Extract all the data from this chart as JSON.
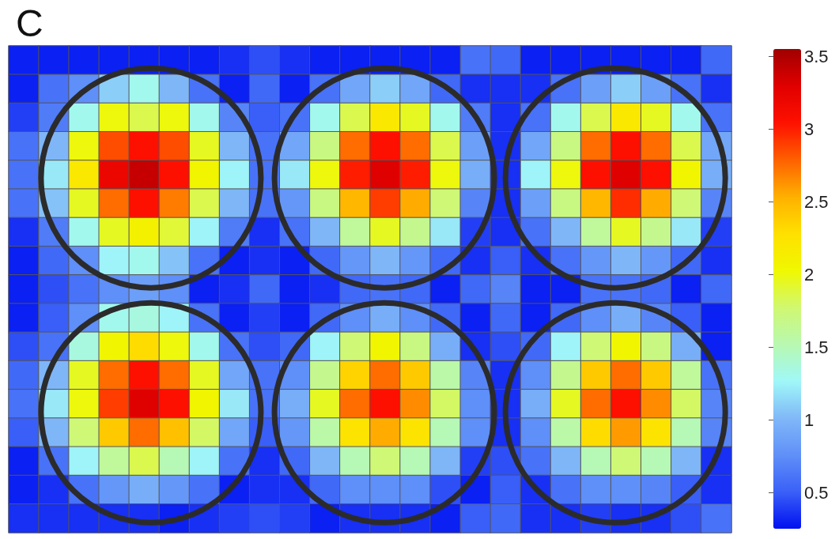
{
  "chart_data": {
    "type": "heatmap",
    "title": "C",
    "categories": [
      null,
      null,
      null,
      null,
      null,
      null,
      null,
      null,
      null,
      null,
      null,
      null,
      null,
      null,
      null,
      null,
      null,
      null,
      null,
      null,
      null,
      null,
      null,
      null
    ],
    "y_categories": [
      null,
      null,
      null,
      null,
      null,
      null,
      null,
      null,
      null,
      null,
      null,
      null,
      null,
      null,
      null,
      null,
      null
    ],
    "cells": [
      [
        0.3,
        0.3,
        0.3,
        0.3,
        0.3,
        0.3,
        0.3,
        0.35,
        0.45,
        0.35,
        0.3,
        0.3,
        0.3,
        0.3,
        0.3,
        0.6,
        0.55,
        0.3,
        0.3,
        0.3,
        0.3,
        0.3,
        0.3,
        0.55
      ],
      [
        0.3,
        0.6,
        0.75,
        1.1,
        1.3,
        1.0,
        0.6,
        0.3,
        0.55,
        0.3,
        0.6,
        0.9,
        1.1,
        0.9,
        0.55,
        0.35,
        0.35,
        0.35,
        0.6,
        0.85,
        1.1,
        0.85,
        0.6,
        0.35
      ],
      [
        0.4,
        0.65,
        1.3,
        2.0,
        1.85,
        2.0,
        1.3,
        0.7,
        0.5,
        0.6,
        1.3,
        1.85,
        2.2,
        1.95,
        1.3,
        0.65,
        0.35,
        0.6,
        1.3,
        1.85,
        2.2,
        1.95,
        1.3,
        0.6
      ],
      [
        0.6,
        1.0,
        2.0,
        2.85,
        3.05,
        2.85,
        1.95,
        1.0,
        0.6,
        0.9,
        1.7,
        2.75,
        3.05,
        2.75,
        1.85,
        0.85,
        0.35,
        0.9,
        1.7,
        2.75,
        3.05,
        2.75,
        1.85,
        0.9
      ],
      [
        0.6,
        1.2,
        2.2,
        3.2,
        3.4,
        3.05,
        2.05,
        1.25,
        0.6,
        1.2,
        2.0,
        3.0,
        3.3,
        3.0,
        2.0,
        0.95,
        0.35,
        1.25,
        2.0,
        3.05,
        3.3,
        3.05,
        2.05,
        0.95
      ],
      [
        0.6,
        1.05,
        1.95,
        2.75,
        3.05,
        2.7,
        1.85,
        1.0,
        0.6,
        0.8,
        1.7,
        2.5,
        2.9,
        2.55,
        1.75,
        0.7,
        0.35,
        0.85,
        1.7,
        2.5,
        2.95,
        2.55,
        1.75,
        0.7
      ],
      [
        0.35,
        0.65,
        1.3,
        1.95,
        2.1,
        1.9,
        1.25,
        0.65,
        0.35,
        0.6,
        1.0,
        1.6,
        1.95,
        1.65,
        1.2,
        0.4,
        0.35,
        0.6,
        1.0,
        1.6,
        1.95,
        1.65,
        1.2,
        0.4
      ],
      [
        0.3,
        0.55,
        0.75,
        1.25,
        1.3,
        1.05,
        0.6,
        0.3,
        0.35,
        0.3,
        0.55,
        0.8,
        1.0,
        0.8,
        0.55,
        0.35,
        0.5,
        0.35,
        0.6,
        0.8,
        1.0,
        0.8,
        0.55,
        0.35
      ],
      [
        0.3,
        0.45,
        0.6,
        0.75,
        0.85,
        0.75,
        0.3,
        0.35,
        0.55,
        0.3,
        0.35,
        0.55,
        0.6,
        0.55,
        0.3,
        0.55,
        0.7,
        0.3,
        0.3,
        0.6,
        0.6,
        0.55,
        0.3,
        0.55
      ],
      [
        0.3,
        0.5,
        0.75,
        1.3,
        1.35,
        1.25,
        0.6,
        0.3,
        0.4,
        0.3,
        0.55,
        0.75,
        0.95,
        0.75,
        0.55,
        0.3,
        0.55,
        0.3,
        0.55,
        0.75,
        0.95,
        0.7,
        0.5,
        0.3
      ],
      [
        0.45,
        0.6,
        1.35,
        2.05,
        2.3,
        2.0,
        1.3,
        0.6,
        0.45,
        0.55,
        1.25,
        1.75,
        2.05,
        1.7,
        0.95,
        0.35,
        0.45,
        0.55,
        1.25,
        1.75,
        2.05,
        1.7,
        0.95,
        0.3
      ],
      [
        0.55,
        1.0,
        1.95,
        2.75,
        3.05,
        2.75,
        1.95,
        0.9,
        0.6,
        0.75,
        1.65,
        2.35,
        2.75,
        2.4,
        1.55,
        0.7,
        0.35,
        0.75,
        1.65,
        2.4,
        2.75,
        2.4,
        1.6,
        0.6
      ],
      [
        0.6,
        1.2,
        2.0,
        2.9,
        3.3,
        3.05,
        2.05,
        1.2,
        0.6,
        0.95,
        1.95,
        2.75,
        3.05,
        2.65,
        1.8,
        0.75,
        0.35,
        0.95,
        1.95,
        2.75,
        3.05,
        2.65,
        1.8,
        0.7
      ],
      [
        0.5,
        1.0,
        1.75,
        2.4,
        2.75,
        2.45,
        1.8,
        0.9,
        0.5,
        0.8,
        1.55,
        2.25,
        2.55,
        2.25,
        1.5,
        0.75,
        0.35,
        0.75,
        1.55,
        2.3,
        2.6,
        2.25,
        1.5,
        0.7
      ],
      [
        0.3,
        0.6,
        1.25,
        1.6,
        1.85,
        1.5,
        1.25,
        0.6,
        0.35,
        0.55,
        1.0,
        1.5,
        1.75,
        1.5,
        1.0,
        0.4,
        0.45,
        0.6,
        1.0,
        1.5,
        1.75,
        1.5,
        1.0,
        0.35
      ],
      [
        0.3,
        0.35,
        0.6,
        0.8,
        0.95,
        0.8,
        0.6,
        0.3,
        0.35,
        0.35,
        0.55,
        0.75,
        0.75,
        0.75,
        0.45,
        0.3,
        0.5,
        0.35,
        0.6,
        0.75,
        0.75,
        0.7,
        0.5,
        0.35
      ],
      [
        0.35,
        0.35,
        0.35,
        0.35,
        0.35,
        0.3,
        0.35,
        0.4,
        0.45,
        0.4,
        0.3,
        0.35,
        0.35,
        0.35,
        0.3,
        0.5,
        0.55,
        0.35,
        0.35,
        0.4,
        0.35,
        0.35,
        0.45,
        0.6
      ]
    ],
    "clim": [
      0.25,
      3.55
    ],
    "cticks": [
      0.5,
      1,
      1.5,
      2,
      2.5,
      3,
      3.5
    ]
  }
}
